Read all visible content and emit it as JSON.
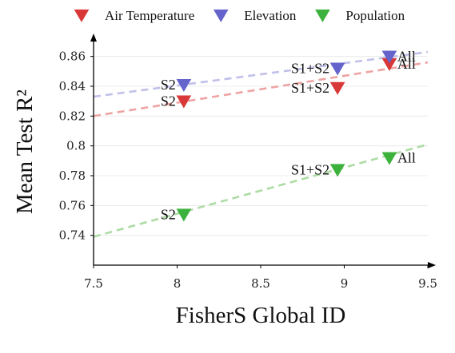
{
  "chart_data": {
    "type": "scatter",
    "xlabel": "FisherS Global ID",
    "ylabel": "Mean Test R²",
    "xlim": [
      7.5,
      9.5
    ],
    "ylim": [
      0.72,
      0.87
    ],
    "xticks": [
      7.5,
      8,
      8.5,
      9,
      9.5
    ],
    "xtick_labels": [
      "7.5",
      "8",
      "8.5",
      "9",
      "9.5"
    ],
    "yticks": [
      0.74,
      0.76,
      0.78,
      0.8,
      0.82,
      0.84,
      0.86
    ],
    "ytick_labels": [
      "0.74",
      "0.76",
      "0.78",
      "0.8",
      "0.82",
      "0.84",
      "0.86"
    ],
    "grid": true,
    "legend_position": "top",
    "series": [
      {
        "name": "Air Temperature",
        "color": "#d93838",
        "trend_color": "#eea3a3",
        "points": [
          {
            "x": 8.04,
            "y": 0.83,
            "label": "S2",
            "label_side": "left"
          },
          {
            "x": 8.96,
            "y": 0.839,
            "label": "S1+S2",
            "label_side": "left"
          },
          {
            "x": 9.27,
            "y": 0.855,
            "label": "All",
            "label_side": "right"
          }
        ],
        "trend": [
          [
            7.5,
            0.82
          ],
          [
            9.5,
            0.856
          ]
        ]
      },
      {
        "name": "Elevation",
        "color": "#6464cc",
        "trend_color": "#c0c0ea",
        "points": [
          {
            "x": 8.04,
            "y": 0.841,
            "label": "S2",
            "label_side": "left"
          },
          {
            "x": 8.96,
            "y": 0.852,
            "label": "S1+S2",
            "label_side": "left"
          },
          {
            "x": 9.27,
            "y": 0.86,
            "label": "All",
            "label_side": "right"
          }
        ],
        "trend": [
          [
            7.5,
            0.833
          ],
          [
            9.5,
            0.863
          ]
        ]
      },
      {
        "name": "Population",
        "color": "#3cb23c",
        "trend_color": "#acdca4",
        "points": [
          {
            "x": 8.04,
            "y": 0.754,
            "label": "S2",
            "label_side": "left"
          },
          {
            "x": 8.96,
            "y": 0.784,
            "label": "S1+S2",
            "label_side": "left"
          },
          {
            "x": 9.27,
            "y": 0.792,
            "label": "All",
            "label_side": "right"
          }
        ],
        "trend": [
          [
            7.5,
            0.739
          ],
          [
            9.5,
            0.801
          ]
        ]
      }
    ]
  }
}
